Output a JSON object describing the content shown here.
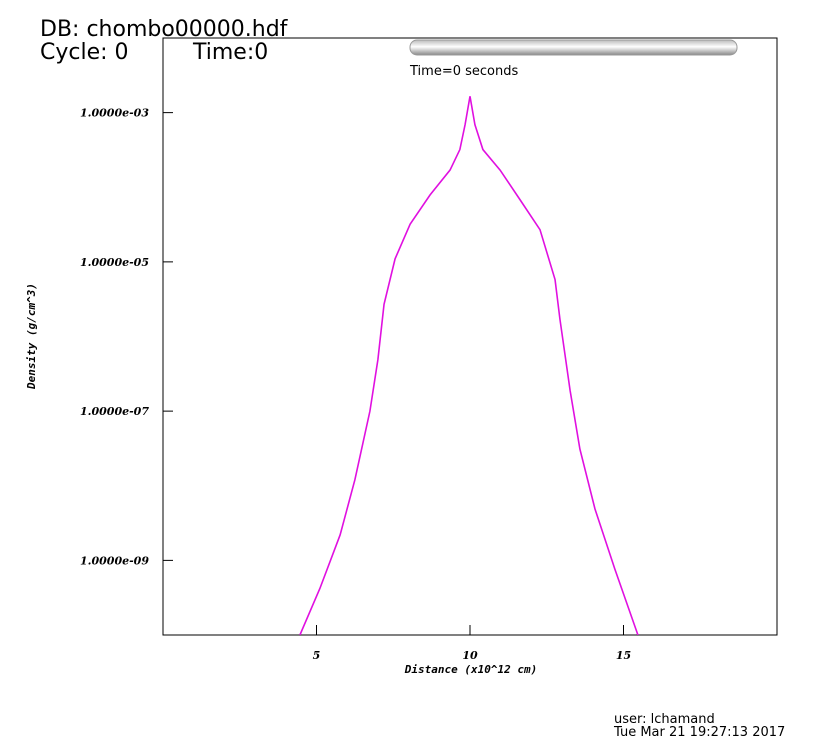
{
  "chart_data": {
    "type": "line",
    "annotations": {
      "db": "DB: chombo00000.hdf",
      "cycle": "Cycle: 0",
      "time": "Time:0",
      "time_slider": "Time=0 seconds",
      "user": "user: lchamand",
      "date": "Tue Mar 21 19:27:13 2017"
    },
    "x_label": "Distance (x10^12 cm)",
    "y_label": "Density (g/cm^3)",
    "xlim": [
      0,
      20
    ],
    "xticks": [
      5,
      10,
      15
    ],
    "ylim": [
      1e-10,
      0.01
    ],
    "log_y": true,
    "yticks": [
      {
        "value": 0.001,
        "label": "1.0000e-03"
      },
      {
        "value": 1e-05,
        "label": "1.0000e-05"
      },
      {
        "value": 1e-07,
        "label": "1.0000e-07"
      },
      {
        "value": 1e-09,
        "label": "1.0000e-09"
      }
    ],
    "x": [
      4.46,
      5.11,
      5.77,
      6.25,
      6.74,
      7.0,
      7.2,
      7.56,
      8.05,
      8.7,
      9.35,
      9.67,
      9.84,
      10.0,
      10.16,
      10.42,
      10.98,
      11.63,
      12.28,
      12.77,
      12.93,
      13.26,
      13.58,
      14.07,
      14.72,
      15.47
    ],
    "series": [
      {
        "color": "#e010e0",
        "values": [
          1e-10,
          4.2e-10,
          2.2e-09,
          1.2e-08,
          1e-07,
          4.9e-07,
          2.7e-06,
          1.1e-05,
          3.2e-05,
          7.9e-05,
          0.00017,
          0.00032,
          0.00069,
          0.00166,
          0.00069,
          0.00032,
          0.00017,
          6.8e-05,
          2.7e-05,
          5.8e-06,
          1.7e-06,
          1.9e-07,
          3.1e-08,
          4.9e-09,
          7.6e-10,
          1e-10
        ]
      }
    ]
  }
}
